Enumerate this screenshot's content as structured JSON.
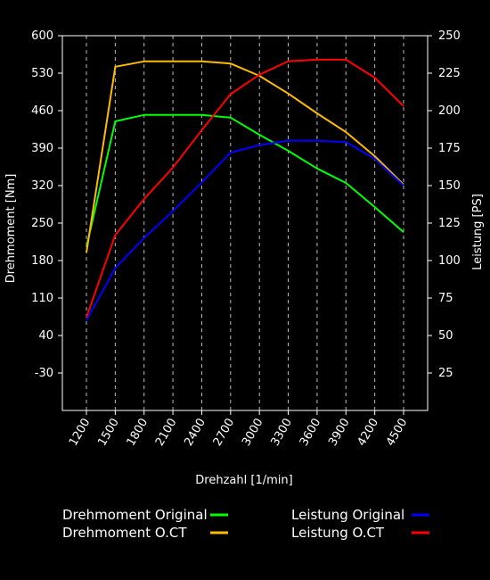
{
  "chart_data": {
    "type": "line",
    "xlabel": "Drehzahl [1/min]",
    "ylabel_left": "Drehmoment [Nm]",
    "ylabel_right": "Leistung [PS]",
    "x": [
      1200,
      1500,
      1800,
      2100,
      2400,
      2700,
      3000,
      3300,
      3600,
      3900,
      4200,
      4500
    ],
    "left_ticks": [
      600,
      530,
      460,
      390,
      320,
      250,
      180,
      110,
      40,
      -30
    ],
    "right_ticks": [
      250,
      225,
      200,
      175,
      150,
      125,
      100,
      75,
      50,
      25
    ],
    "left_range": [
      -100,
      600
    ],
    "right_range": [
      0,
      250
    ],
    "grid": "vertical-dashed",
    "legend_position": "bottom",
    "series": [
      {
        "name": "Drehmoment Original",
        "axis": "left",
        "color": "#00ff00",
        "x": [
          1200,
          1500,
          1800,
          2100,
          2400,
          2700,
          3000,
          3300,
          3600,
          3900,
          4200,
          4500
        ],
        "values": [
          205,
          440,
          452,
          452,
          452,
          447,
          415,
          385,
          352,
          325,
          280,
          233
        ]
      },
      {
        "name": "Drehmoment O.CT",
        "axis": "left",
        "color": "#ffbb00",
        "x": [
          1200,
          1500,
          1800,
          2100,
          2400,
          2700,
          3000,
          3300,
          3600,
          3900,
          4200,
          4500
        ],
        "values": [
          195,
          542,
          552,
          552,
          552,
          548,
          525,
          492,
          455,
          420,
          375,
          322
        ]
      },
      {
        "name": "Leistung Original",
        "axis": "right",
        "color": "#0000ff",
        "x": [
          1200,
          1500,
          1800,
          2100,
          2400,
          2700,
          3000,
          3300,
          3600,
          3900,
          4200,
          4500
        ],
        "values": [
          60,
          95,
          115,
          133,
          152,
          172,
          177,
          180,
          180,
          179,
          168,
          150
        ]
      },
      {
        "name": "Leistung O.CT",
        "axis": "right",
        "color": "#ff0000",
        "x": [
          1200,
          1500,
          1800,
          2100,
          2400,
          2700,
          3000,
          3300,
          3600,
          3900,
          4200,
          4500
        ],
        "values": [
          62,
          117,
          141,
          162,
          187,
          211,
          224,
          233,
          234,
          234,
          222,
          203
        ]
      }
    ]
  }
}
